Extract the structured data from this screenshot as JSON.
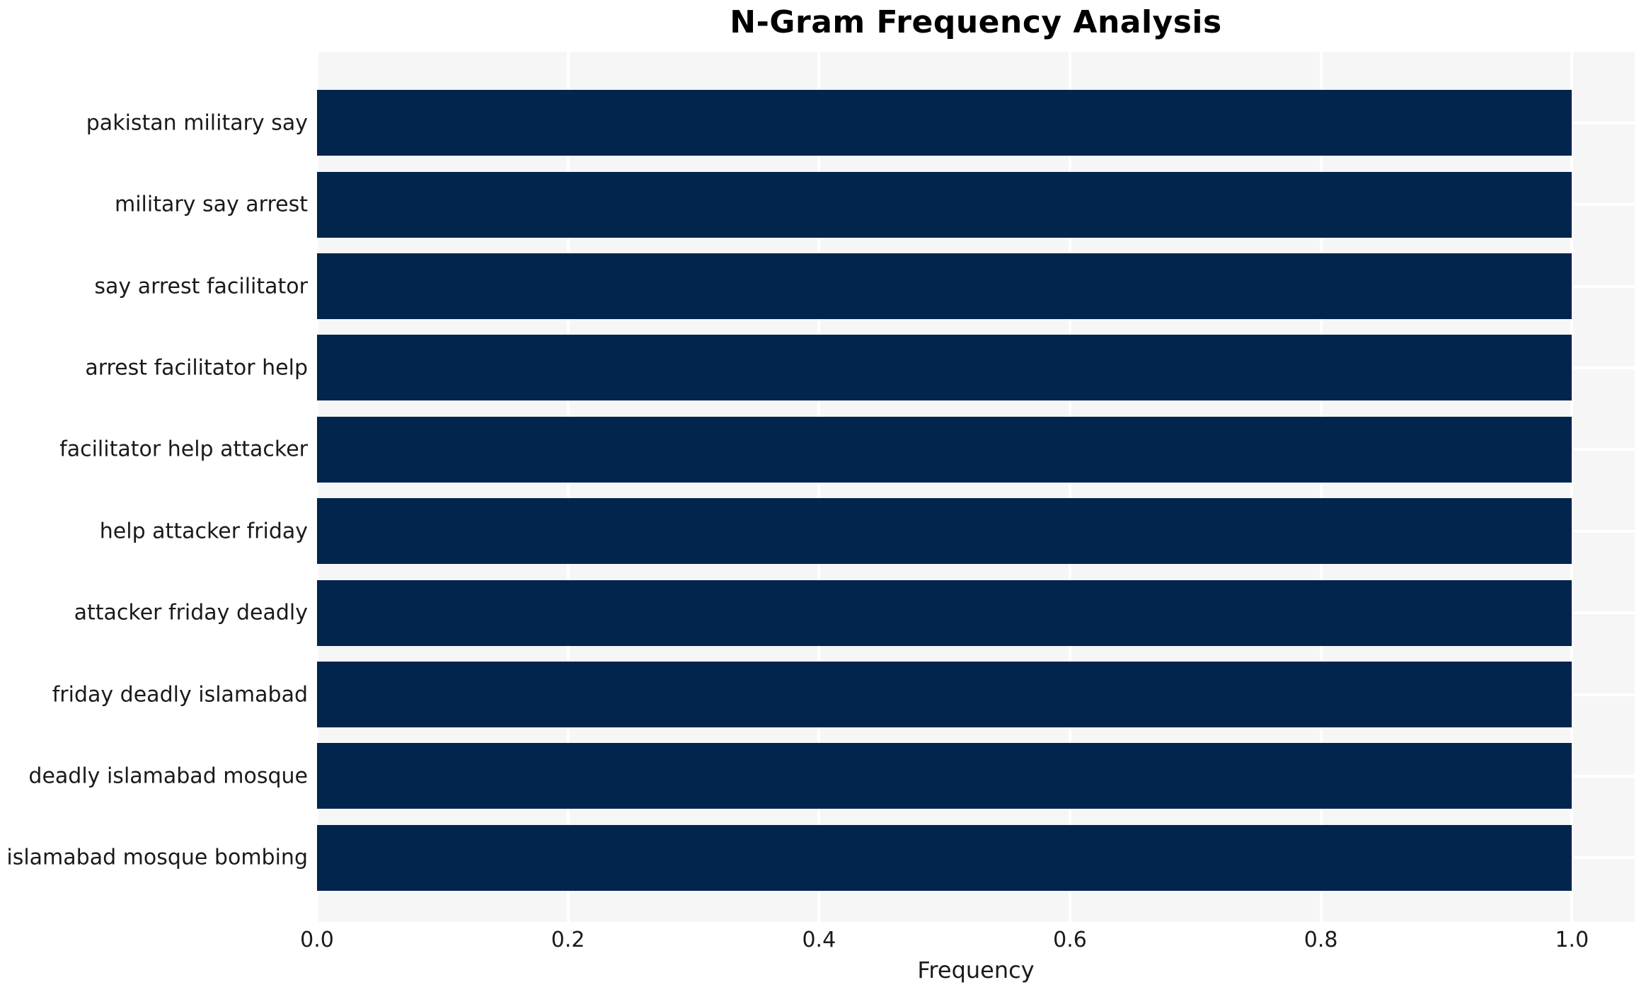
{
  "page": {
    "background": "#ffffff"
  },
  "chart_data": {
    "type": "bar",
    "orientation": "horizontal",
    "title": "N-Gram Frequency Analysis",
    "xlabel": "Frequency",
    "ylabel": "",
    "categories": [
      "pakistan military say",
      "military say arrest",
      "say arrest facilitator",
      "arrest facilitator help",
      "facilitator help attacker",
      "help attacker friday",
      "attacker friday deadly",
      "friday deadly islamabad",
      "deadly islamabad mosque",
      "islamabad mosque bombing"
    ],
    "values": [
      1.0,
      1.0,
      1.0,
      1.0,
      1.0,
      1.0,
      1.0,
      1.0,
      1.0,
      1.0
    ],
    "xlim": [
      0,
      1.05
    ],
    "xtick_values": [
      0.0,
      0.2,
      0.4,
      0.6,
      0.8,
      1.0
    ],
    "xtick_labels": [
      "0.0",
      "0.2",
      "0.4",
      "0.6",
      "0.8",
      "1.0"
    ],
    "grid": "white gridlines: vertical at x ticks, horizontal at category centers",
    "legend": "none",
    "colors": {
      "bar": "#02254e",
      "plot_background": "#f6f6f7",
      "gridline": "#ffffff",
      "tick_text": "#1a1a1a",
      "title_text": "#000000"
    }
  }
}
